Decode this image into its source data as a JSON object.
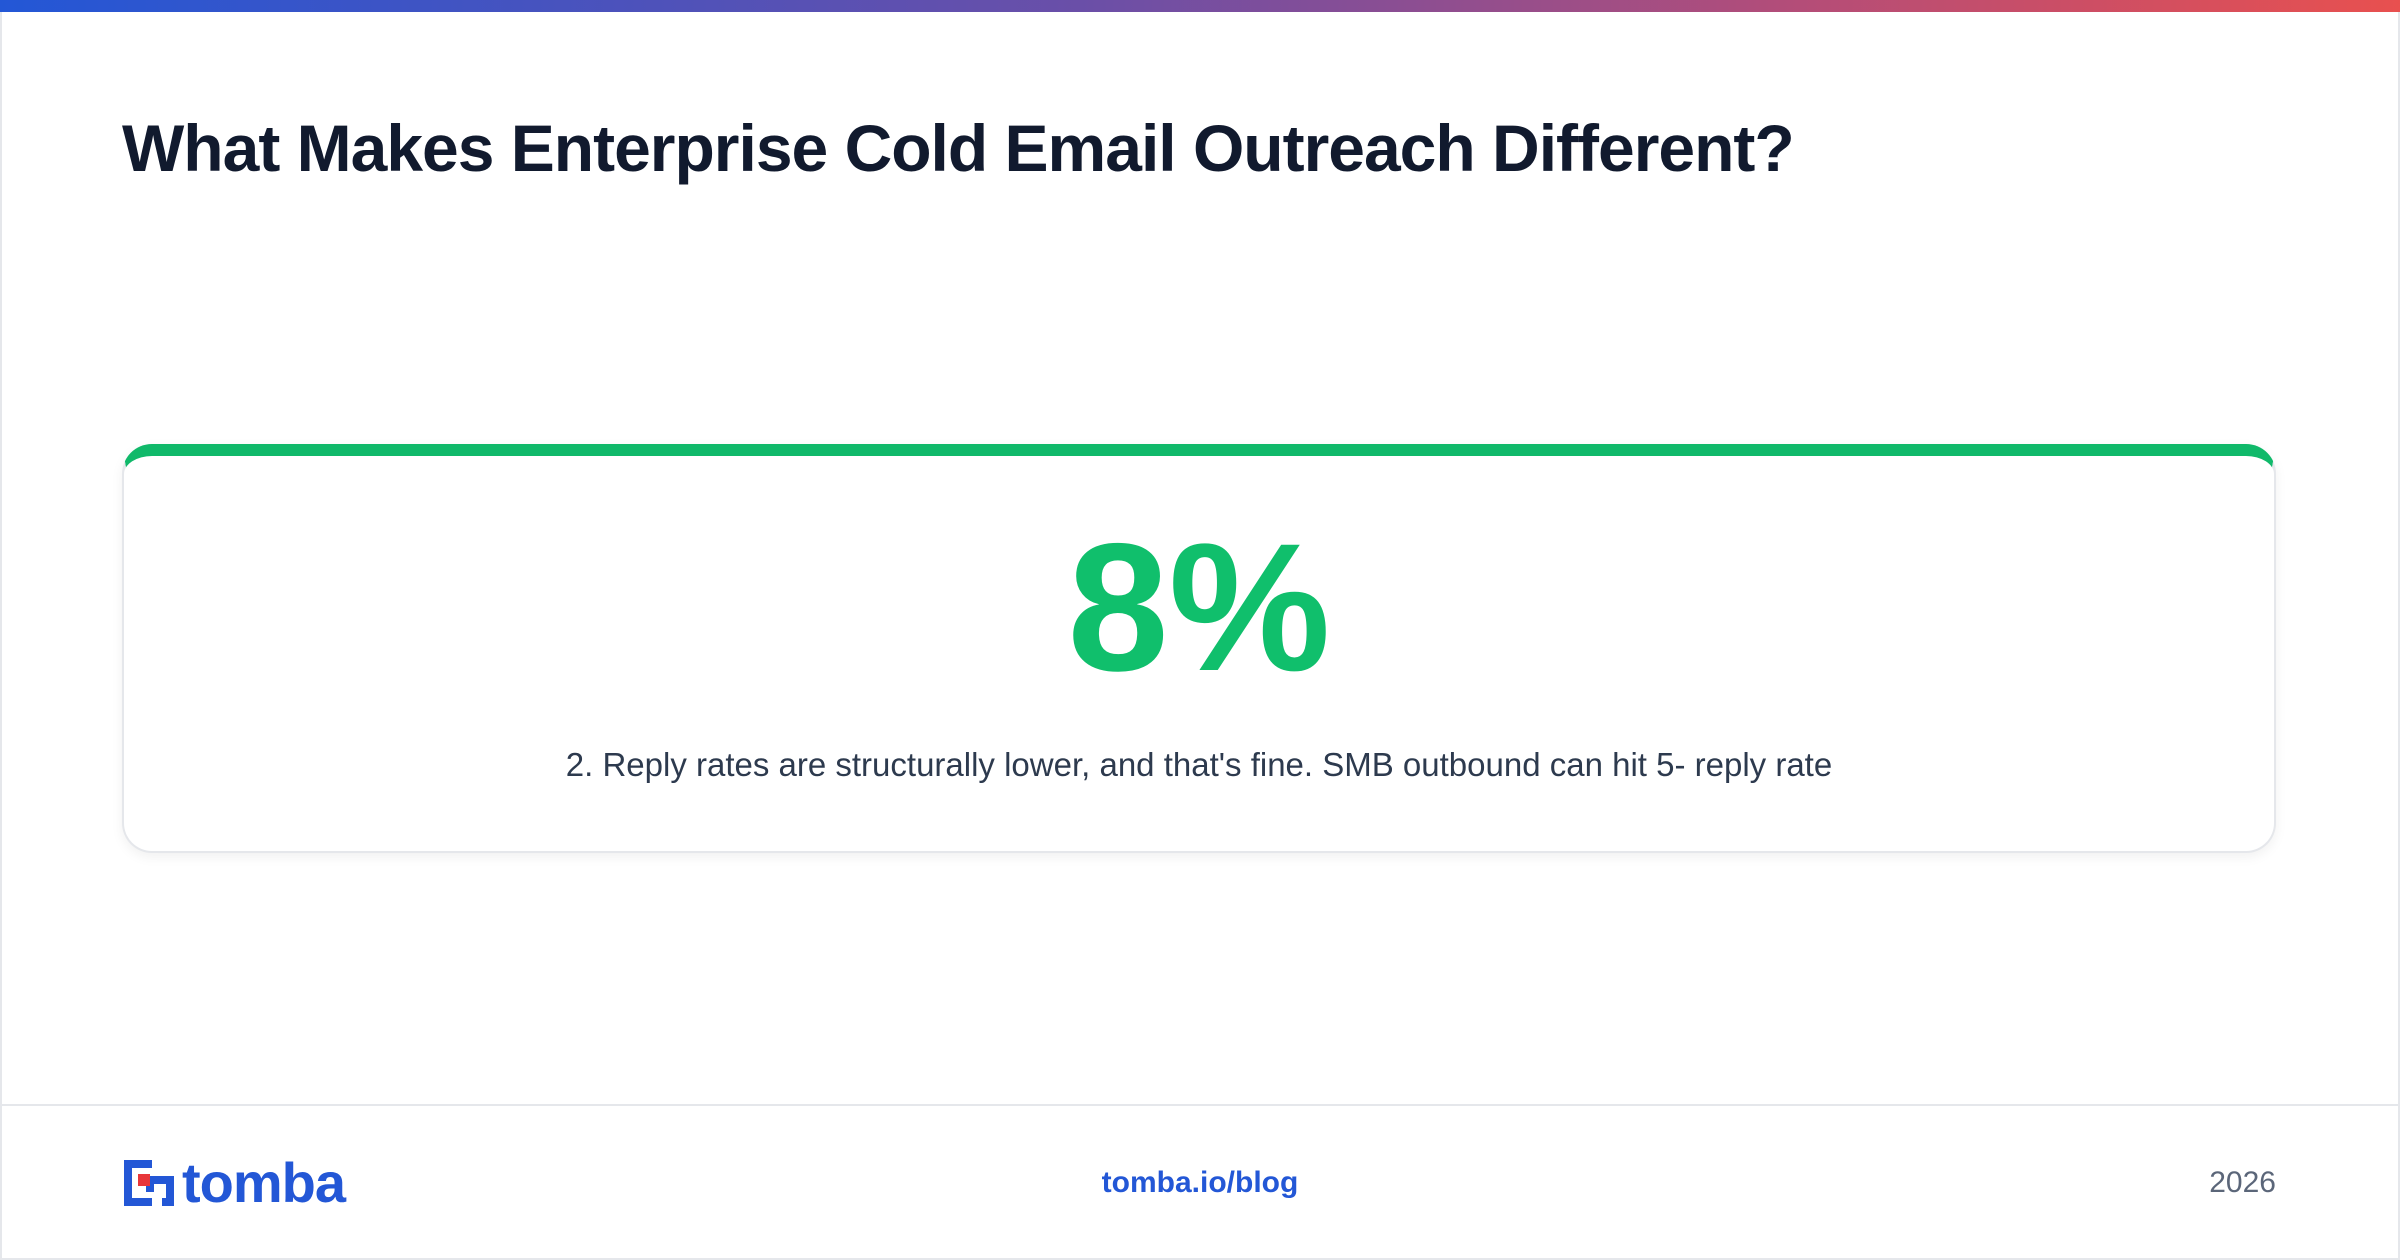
{
  "header": {
    "title": "What Makes Enterprise Cold Email Outreach Different?"
  },
  "stat": {
    "value": "8%",
    "description": "2. Reply rates are structurally lower, and that's fine. SMB outbound can hit 5- reply rate"
  },
  "footer": {
    "brand": "tomba",
    "link": "tomba.io/blog",
    "year": "2026"
  }
}
